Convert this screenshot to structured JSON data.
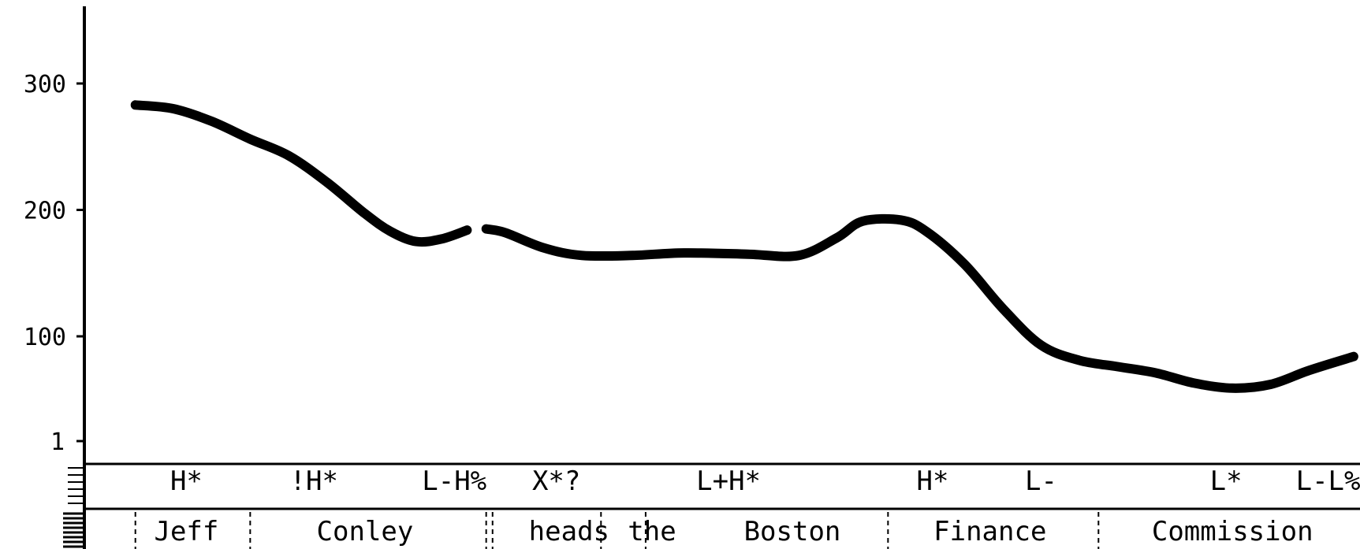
{
  "chart_data": {
    "type": "line",
    "title": "",
    "xlabel": "",
    "ylabel": "",
    "ylim": [
      1,
      360
    ],
    "yticks": [
      {
        "value": 300,
        "label": "300"
      },
      {
        "value": 200,
        "label": "200"
      },
      {
        "value": 100,
        "label": "100"
      },
      {
        "value": 1,
        "label": "1"
      }
    ],
    "xlim": [
      0,
      100
    ],
    "grid": false,
    "series": [
      {
        "color": "#000000",
        "segments": [
          [
            [
              4,
              283
            ],
            [
              7,
              280
            ],
            [
              10,
              270
            ],
            [
              13,
              256
            ],
            [
              16,
              243
            ],
            [
              19,
              222
            ],
            [
              22,
              197
            ],
            [
              24,
              183
            ],
            [
              26,
              175
            ],
            [
              28,
              177
            ],
            [
              30,
              184
            ]
          ],
          [
            [
              31.5,
              185
            ],
            [
              33,
              182
            ],
            [
              36,
              170
            ],
            [
              39,
              164
            ],
            [
              43,
              164
            ],
            [
              47,
              166
            ],
            [
              52,
              165
            ],
            [
              56,
              164
            ],
            [
              59,
              178
            ],
            [
              61,
              191
            ],
            [
              64,
              192
            ],
            [
              66,
              183
            ],
            [
              69,
              157
            ],
            [
              72,
              122
            ],
            [
              75,
              93
            ],
            [
              78,
              81
            ],
            [
              81,
              76
            ],
            [
              84,
              71
            ],
            [
              87,
              63
            ],
            [
              90,
              59
            ],
            [
              93,
              62
            ],
            [
              96,
              73
            ],
            [
              99.5,
              84
            ]
          ]
        ]
      }
    ],
    "tone_tier": [
      {
        "label": "H*",
        "x": 8
      },
      {
        "label": "!H*",
        "x": 18
      },
      {
        "label": "L-H%",
        "x": 29
      },
      {
        "label": "X*?",
        "x": 37
      },
      {
        "label": "L+H*",
        "x": 50.5
      },
      {
        "label": "H*",
        "x": 66.5
      },
      {
        "label": "L-",
        "x": 75
      },
      {
        "label": "L*",
        "x": 89.5
      },
      {
        "label": "L-L%",
        "x": 97.5
      }
    ],
    "word_tier": [
      {
        "label": "Jeff",
        "x": 8
      },
      {
        "label": "Conley",
        "x": 22
      },
      {
        "label": "heads",
        "x": 38
      },
      {
        "label": "the",
        "x": 44.5
      },
      {
        "label": "Boston",
        "x": 55.5
      },
      {
        "label": "Finance",
        "x": 71
      },
      {
        "label": "Commission",
        "x": 90
      }
    ],
    "word_boundaries": [
      4,
      13,
      31.5,
      32,
      40.5,
      44,
      63,
      79.5
    ]
  }
}
